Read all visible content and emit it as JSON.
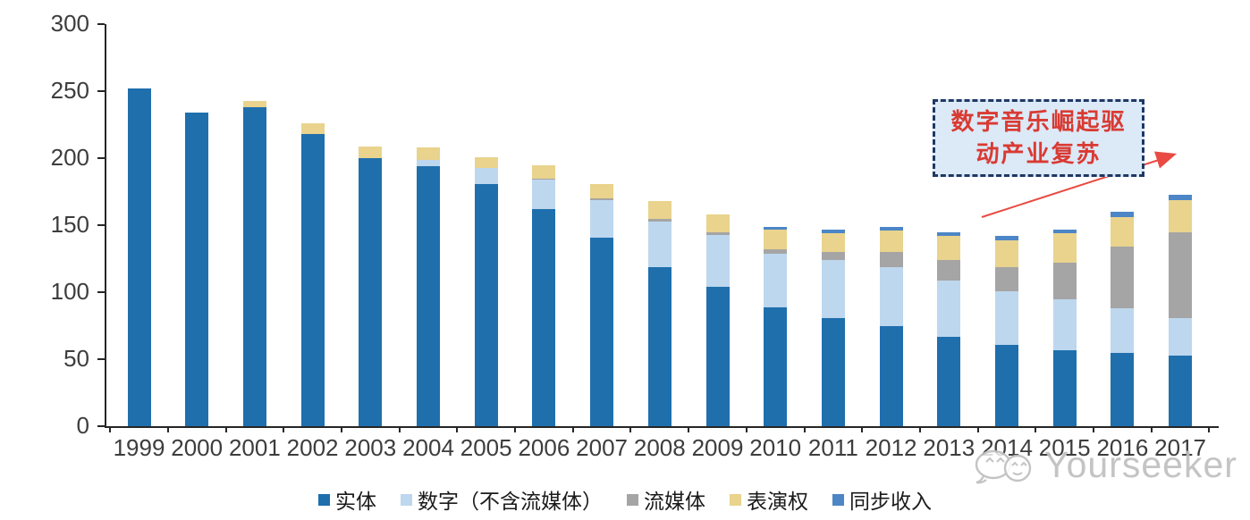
{
  "chart_data": {
    "type": "bar",
    "subtype": "stacked",
    "title": "",
    "categories": [
      "1999",
      "2000",
      "2001",
      "2002",
      "2003",
      "2004",
      "2005",
      "2006",
      "2007",
      "2008",
      "2009",
      "2010",
      "2011",
      "2012",
      "2013",
      "2014",
      "2015",
      "2016",
      "2017"
    ],
    "series": [
      {
        "name": "实体",
        "color": "#1F6FAD",
        "values": [
          252,
          234,
          238,
          218,
          200,
          194,
          181,
          162,
          141,
          119,
          104,
          89,
          81,
          75,
          67,
          61,
          57,
          55,
          53
        ]
      },
      {
        "name": "数字（不含流媒体）",
        "color": "#BDD7EE",
        "values": [
          0,
          0,
          0,
          0,
          0,
          5,
          12,
          22,
          28,
          34,
          39,
          40,
          43,
          44,
          42,
          40,
          38,
          33,
          28
        ]
      },
      {
        "name": "流媒体",
        "color": "#A5A5A5",
        "values": [
          0,
          0,
          0,
          0,
          0,
          0,
          0,
          1,
          1,
          2,
          2,
          3,
          6,
          11,
          15,
          18,
          27,
          46,
          64
        ]
      },
      {
        "name": "表演权",
        "color": "#E9D38D",
        "values": [
          0,
          0,
          5,
          8,
          9,
          9,
          8,
          10,
          11,
          13,
          13,
          15,
          14,
          16,
          18,
          20,
          22,
          22,
          24
        ]
      },
      {
        "name": "同步收入",
        "color": "#4C86C6",
        "values": [
          0,
          0,
          0,
          0,
          0,
          0,
          0,
          0,
          0,
          0,
          0,
          2,
          3,
          3,
          3,
          3,
          3,
          4,
          4
        ]
      }
    ],
    "xlabel": "",
    "ylabel": "",
    "ylim": [
      0,
      300
    ],
    "ytick_step": 50,
    "grid": false,
    "legend_position": "bottom"
  },
  "annotation": {
    "line1": "数字音乐崛起驱",
    "line2": "动产业复苏",
    "text_color": "#D93A32",
    "box_fill": "#DCE9F7",
    "box_border": "#1F3864",
    "arrow_color": "#E94B42"
  },
  "watermark": {
    "text": "Yourseeker",
    "color": "#BFBFBF"
  }
}
